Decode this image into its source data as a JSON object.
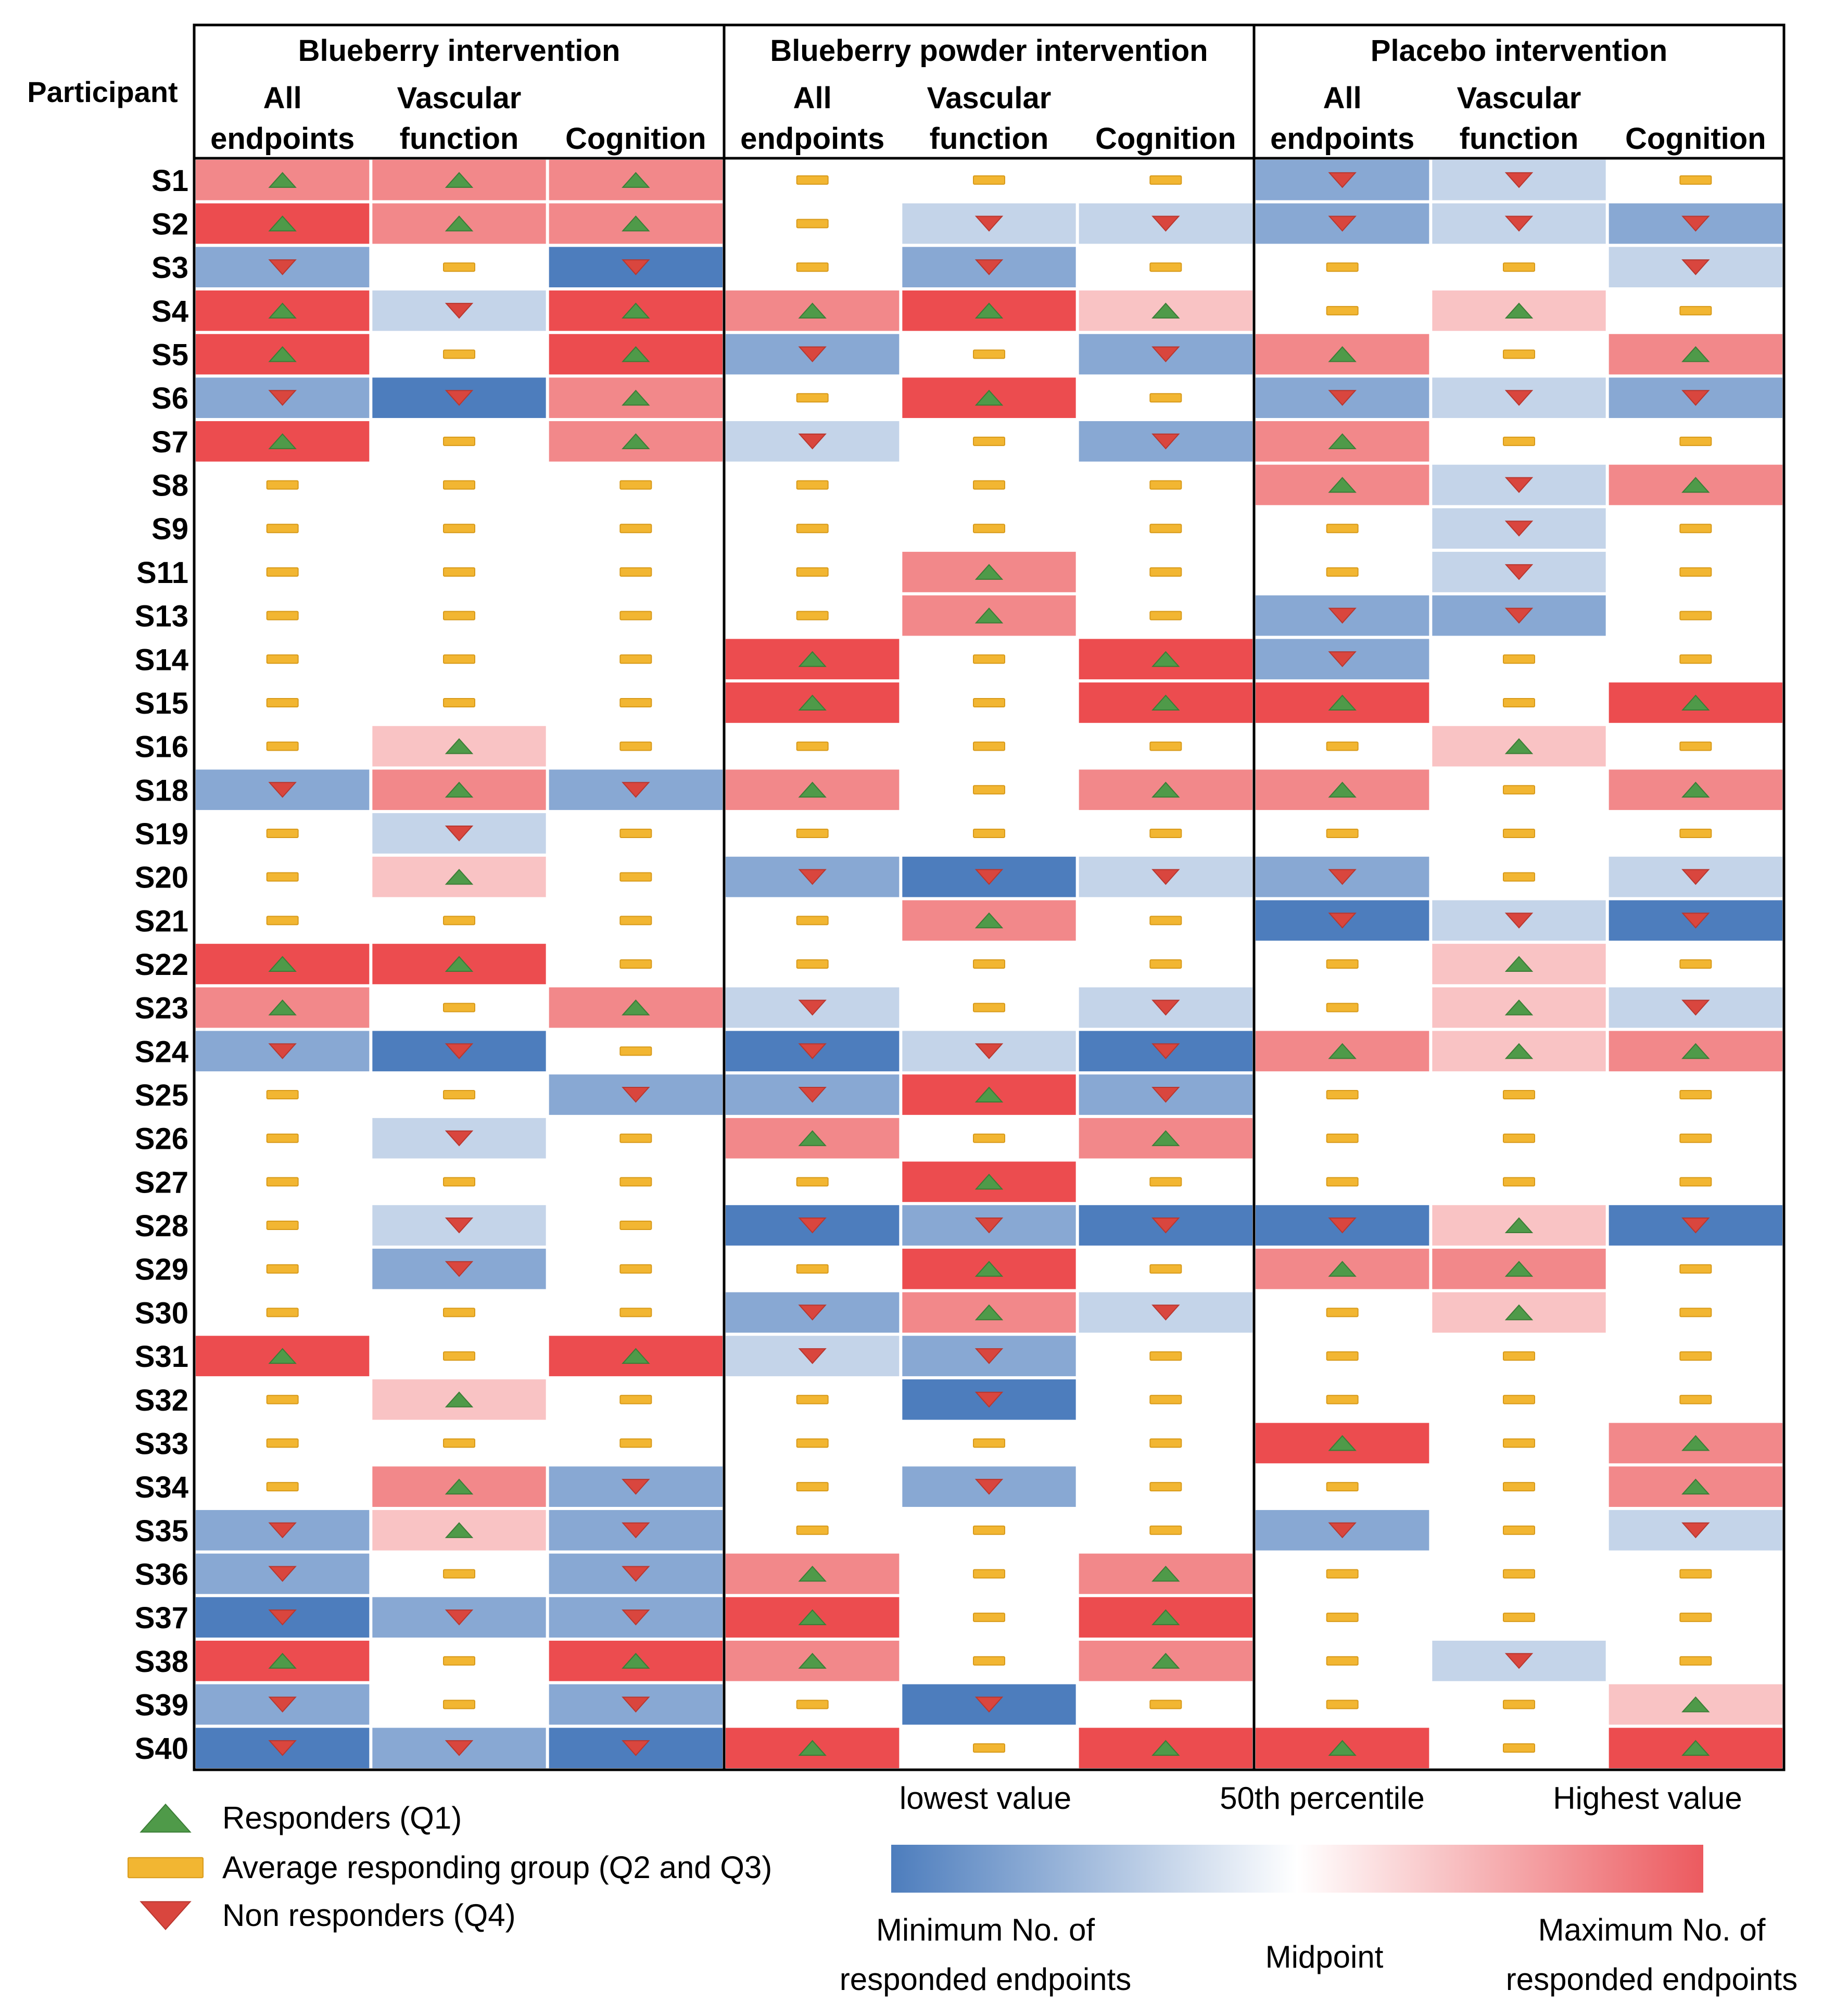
{
  "chart_data": {
    "type": "heatmap",
    "row_header": "Participant",
    "groups": [
      "Blueberry intervention",
      "Blueberry powder intervention",
      "Placebo intervention"
    ],
    "columns": [
      {
        "line1": "All",
        "line2": "endpoints"
      },
      {
        "line1": "Vascular",
        "line2": "function"
      },
      {
        "line1": "",
        "line2": "Cognition"
      }
    ],
    "rows": [
      "S1",
      "S2",
      "S3",
      "S4",
      "S5",
      "S6",
      "S7",
      "S8",
      "S9",
      "S11",
      "S13",
      "S14",
      "S15",
      "S16",
      "S18",
      "S19",
      "S20",
      "S21",
      "S22",
      "S23",
      "S24",
      "S25",
      "S26",
      "S27",
      "S28",
      "S29",
      "S30",
      "S31",
      "S32",
      "S33",
      "S34",
      "S35",
      "S36",
      "S37",
      "S38",
      "S39",
      "S40"
    ],
    "value_scale": "-3 = lowest value (strong blue), 0 = 50th percentile / midpoint (white), +3 = highest value (strong red)",
    "values": [
      [
        2,
        2,
        2,
        0,
        0,
        0,
        -2,
        -1,
        0
      ],
      [
        3,
        2,
        2,
        0,
        -1,
        -1,
        -2,
        -1,
        -2
      ],
      [
        -2,
        0,
        -3,
        0,
        -2,
        0,
        0,
        0,
        -1
      ],
      [
        3,
        -1,
        3,
        2,
        3,
        1,
        0,
        1,
        0
      ],
      [
        3,
        0,
        3,
        -2,
        0,
        -2,
        2,
        0,
        2
      ],
      [
        -2,
        -3,
        2,
        0,
        3,
        0,
        -2,
        -1,
        -2
      ],
      [
        3,
        0,
        2,
        -1,
        0,
        -2,
        2,
        0,
        0
      ],
      [
        0,
        0,
        0,
        0,
        0,
        0,
        2,
        -1,
        2
      ],
      [
        0,
        0,
        0,
        0,
        0,
        0,
        0,
        -1,
        0
      ],
      [
        0,
        0,
        0,
        0,
        2,
        0,
        0,
        -1,
        0
      ],
      [
        0,
        0,
        0,
        0,
        2,
        0,
        -2,
        -2,
        0
      ],
      [
        0,
        0,
        0,
        3,
        0,
        3,
        -2,
        0,
        0
      ],
      [
        0,
        0,
        0,
        3,
        0,
        3,
        3,
        0,
        3
      ],
      [
        0,
        1,
        0,
        0,
        0,
        0,
        0,
        1,
        0
      ],
      [
        -2,
        2,
        -2,
        2,
        0,
        2,
        2,
        0,
        2
      ],
      [
        0,
        -1,
        0,
        0,
        0,
        0,
        0,
        0,
        0
      ],
      [
        0,
        1,
        0,
        -2,
        -3,
        -1,
        -2,
        0,
        -1
      ],
      [
        0,
        0,
        0,
        0,
        2,
        0,
        -3,
        -1,
        -3
      ],
      [
        3,
        3,
        0,
        0,
        0,
        0,
        0,
        1,
        0
      ],
      [
        2,
        0,
        2,
        -1,
        0,
        -1,
        0,
        1,
        -1
      ],
      [
        -2,
        -3,
        0,
        -3,
        -1,
        -3,
        2,
        1,
        2
      ],
      [
        0,
        0,
        -2,
        -2,
        3,
        -2,
        0,
        0,
        0
      ],
      [
        0,
        -1,
        0,
        2,
        0,
        2,
        0,
        0,
        0
      ],
      [
        0,
        0,
        0,
        0,
        3,
        0,
        0,
        0,
        0
      ],
      [
        0,
        -1,
        0,
        -3,
        -2,
        -3,
        -3,
        1,
        -3
      ],
      [
        0,
        -2,
        0,
        0,
        3,
        0,
        2,
        2,
        0
      ],
      [
        0,
        0,
        0,
        -2,
        2,
        -1,
        0,
        1,
        0
      ],
      [
        3,
        0,
        3,
        -1,
        -2,
        0,
        0,
        0,
        0
      ],
      [
        0,
        1,
        0,
        0,
        -3,
        0,
        0,
        0,
        0
      ],
      [
        0,
        0,
        0,
        0,
        0,
        0,
        3,
        0,
        2
      ],
      [
        0,
        2,
        -2,
        0,
        -2,
        0,
        0,
        0,
        2
      ],
      [
        -2,
        1,
        -2,
        0,
        0,
        0,
        -2,
        0,
        -1
      ],
      [
        -2,
        0,
        -2,
        2,
        0,
        2,
        0,
        0,
        0
      ],
      [
        -3,
        -2,
        -2,
        3,
        0,
        3,
        0,
        0,
        0
      ],
      [
        3,
        0,
        3,
        2,
        0,
        2,
        0,
        -1,
        0
      ],
      [
        -2,
        0,
        -2,
        0,
        -3,
        0,
        0,
        0,
        1
      ],
      [
        -3,
        -2,
        -3,
        3,
        0,
        3,
        3,
        0,
        3
      ]
    ],
    "markers": [
      [
        "up",
        "up",
        "up",
        "avg",
        "avg",
        "avg",
        "down",
        "down",
        "avg"
      ],
      [
        "up",
        "up",
        "up",
        "avg",
        "down",
        "down",
        "down",
        "down",
        "down"
      ],
      [
        "down",
        "avg",
        "down",
        "avg",
        "down",
        "avg",
        "avg",
        "avg",
        "down"
      ],
      [
        "up",
        "down",
        "up",
        "up",
        "up",
        "up",
        "avg",
        "up",
        "avg"
      ],
      [
        "up",
        "avg",
        "up",
        "down",
        "avg",
        "down",
        "up",
        "avg",
        "up"
      ],
      [
        "down",
        "down",
        "up",
        "avg",
        "up",
        "avg",
        "down",
        "down",
        "down"
      ],
      [
        "up",
        "avg",
        "up",
        "down",
        "avg",
        "down",
        "up",
        "avg",
        "avg"
      ],
      [
        "avg",
        "avg",
        "avg",
        "avg",
        "avg",
        "avg",
        "up",
        "down",
        "up"
      ],
      [
        "avg",
        "avg",
        "avg",
        "avg",
        "avg",
        "avg",
        "avg",
        "down",
        "avg"
      ],
      [
        "avg",
        "avg",
        "avg",
        "avg",
        "up",
        "avg",
        "avg",
        "down",
        "avg"
      ],
      [
        "avg",
        "avg",
        "avg",
        "avg",
        "up",
        "avg",
        "down",
        "down",
        "avg"
      ],
      [
        "avg",
        "avg",
        "avg",
        "up",
        "avg",
        "up",
        "down",
        "avg",
        "avg"
      ],
      [
        "avg",
        "avg",
        "avg",
        "up",
        "avg",
        "up",
        "up",
        "avg",
        "up"
      ],
      [
        "avg",
        "up",
        "avg",
        "avg",
        "avg",
        "avg",
        "avg",
        "up",
        "avg"
      ],
      [
        "down",
        "up",
        "down",
        "up",
        "avg",
        "up",
        "up",
        "avg",
        "up"
      ],
      [
        "avg",
        "down",
        "avg",
        "avg",
        "avg",
        "avg",
        "avg",
        "avg",
        "avg"
      ],
      [
        "avg",
        "up",
        "avg",
        "down",
        "down",
        "down",
        "down",
        "avg",
        "down"
      ],
      [
        "avg",
        "avg",
        "avg",
        "avg",
        "up",
        "avg",
        "down",
        "down",
        "down"
      ],
      [
        "up",
        "up",
        "avg",
        "avg",
        "avg",
        "avg",
        "avg",
        "up",
        "avg"
      ],
      [
        "up",
        "avg",
        "up",
        "down",
        "avg",
        "down",
        "avg",
        "up",
        "down"
      ],
      [
        "down",
        "down",
        "avg",
        "down",
        "down",
        "down",
        "up",
        "up",
        "up"
      ],
      [
        "avg",
        "avg",
        "down",
        "down",
        "up",
        "down",
        "avg",
        "avg",
        "avg"
      ],
      [
        "avg",
        "down",
        "avg",
        "up",
        "avg",
        "up",
        "avg",
        "avg",
        "avg"
      ],
      [
        "avg",
        "avg",
        "avg",
        "avg",
        "up",
        "avg",
        "avg",
        "avg",
        "avg"
      ],
      [
        "avg",
        "down",
        "avg",
        "down",
        "down",
        "down",
        "down",
        "up",
        "down"
      ],
      [
        "avg",
        "down",
        "avg",
        "avg",
        "up",
        "avg",
        "up",
        "up",
        "avg"
      ],
      [
        "avg",
        "avg",
        "avg",
        "down",
        "up",
        "down",
        "avg",
        "up",
        "avg"
      ],
      [
        "up",
        "avg",
        "up",
        "down",
        "down",
        "avg",
        "avg",
        "avg",
        "avg"
      ],
      [
        "avg",
        "up",
        "avg",
        "avg",
        "down",
        "avg",
        "avg",
        "avg",
        "avg"
      ],
      [
        "avg",
        "avg",
        "avg",
        "avg",
        "avg",
        "avg",
        "up",
        "avg",
        "up"
      ],
      [
        "avg",
        "up",
        "down",
        "avg",
        "down",
        "avg",
        "avg",
        "avg",
        "up"
      ],
      [
        "down",
        "up",
        "down",
        "avg",
        "avg",
        "avg",
        "down",
        "avg",
        "down"
      ],
      [
        "down",
        "avg",
        "down",
        "up",
        "avg",
        "up",
        "avg",
        "avg",
        "avg"
      ],
      [
        "down",
        "down",
        "down",
        "up",
        "avg",
        "up",
        "avg",
        "avg",
        "avg"
      ],
      [
        "up",
        "avg",
        "up",
        "up",
        "avg",
        "up",
        "avg",
        "down",
        "avg"
      ],
      [
        "down",
        "avg",
        "down",
        "avg",
        "down",
        "avg",
        "avg",
        "avg",
        "up"
      ],
      [
        "down",
        "down",
        "down",
        "up",
        "avg",
        "up",
        "up",
        "avg",
        "up"
      ]
    ],
    "colors": {
      "high": "#ec4c4f",
      "mid": "#ffffff",
      "low": "#4d7dbd",
      "marker_up": "#4f9a49",
      "marker_avg": "#f2b632",
      "marker_down": "#d9463e"
    },
    "legend": {
      "markers": [
        {
          "type": "up",
          "label": "Responders (Q1)"
        },
        {
          "type": "avg",
          "label": "Average responding group (Q2 and Q3)"
        },
        {
          "type": "down",
          "label": "Non responders (Q4)"
        }
      ],
      "scale_top": [
        "lowest value",
        "50th percentile",
        "Highest value"
      ],
      "scale_bottom_left": [
        "Minimum No. of",
        "responded endpoints"
      ],
      "scale_bottom_mid": "Midpoint",
      "scale_bottom_right": [
        "Maximum No. of",
        "responded endpoints"
      ]
    }
  }
}
